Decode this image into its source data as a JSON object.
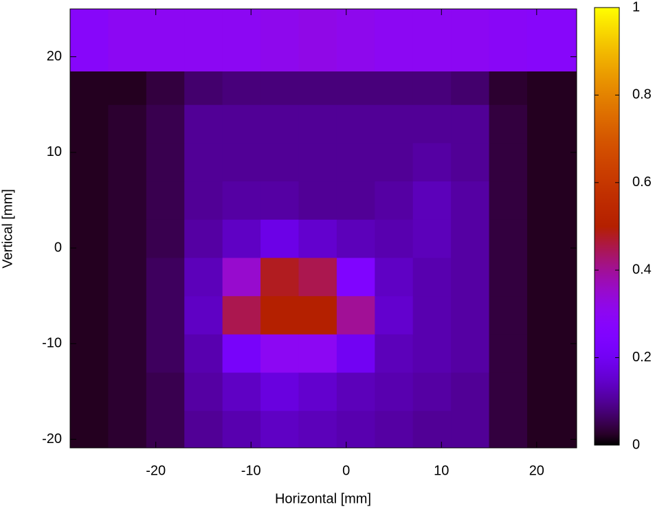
{
  "chart_data": {
    "type": "heatmap",
    "xlabel": "Horizontal [mm]",
    "ylabel": "Vertical [mm]",
    "xlim": [
      -29,
      24.2
    ],
    "ylim": [
      -20.9,
      25
    ],
    "xticks": [
      -20,
      -10,
      0,
      10,
      20
    ],
    "yticks": [
      -20,
      -10,
      0,
      10,
      20
    ],
    "zlim": [
      0,
      1
    ],
    "zticks": [
      0,
      0.2,
      0.4,
      0.6,
      0.8,
      1
    ],
    "x_edges": [
      -29,
      -25,
      -21,
      -17,
      -13,
      -9,
      -5,
      -1,
      3,
      7,
      11,
      15,
      19,
      24.2
    ],
    "y_edges": [
      -20.9,
      -17,
      -13,
      -9,
      -5,
      -1,
      3,
      7,
      11,
      15,
      18.5,
      25
    ],
    "z": [
      [
        0.02,
        0.03,
        0.05,
        0.1,
        0.12,
        0.14,
        0.13,
        0.12,
        0.11,
        0.1,
        0.1,
        0.04,
        0.02
      ],
      [
        0.02,
        0.03,
        0.05,
        0.11,
        0.14,
        0.17,
        0.15,
        0.13,
        0.12,
        0.11,
        0.1,
        0.04,
        0.02
      ],
      [
        0.02,
        0.03,
        0.06,
        0.12,
        0.22,
        0.3,
        0.3,
        0.2,
        0.13,
        0.12,
        0.11,
        0.04,
        0.02
      ],
      [
        0.02,
        0.03,
        0.06,
        0.14,
        0.45,
        0.5,
        0.5,
        0.4,
        0.15,
        0.12,
        0.11,
        0.04,
        0.02
      ],
      [
        0.02,
        0.03,
        0.06,
        0.13,
        0.35,
        0.48,
        0.45,
        0.25,
        0.14,
        0.12,
        0.11,
        0.04,
        0.02
      ],
      [
        0.02,
        0.03,
        0.05,
        0.11,
        0.14,
        0.18,
        0.15,
        0.13,
        0.12,
        0.13,
        0.11,
        0.04,
        0.02
      ],
      [
        0.02,
        0.03,
        0.05,
        0.1,
        0.11,
        0.11,
        0.1,
        0.1,
        0.11,
        0.13,
        0.11,
        0.04,
        0.02
      ],
      [
        0.02,
        0.03,
        0.05,
        0.1,
        0.1,
        0.1,
        0.1,
        0.1,
        0.1,
        0.11,
        0.1,
        0.04,
        0.02
      ],
      [
        0.02,
        0.03,
        0.05,
        0.1,
        0.1,
        0.1,
        0.1,
        0.1,
        0.1,
        0.1,
        0.1,
        0.04,
        0.02
      ],
      [
        0.02,
        0.02,
        0.04,
        0.07,
        0.08,
        0.08,
        0.08,
        0.08,
        0.08,
        0.08,
        0.07,
        0.03,
        0.02
      ],
      [
        0.28,
        0.3,
        0.3,
        0.3,
        0.3,
        0.31,
        0.32,
        0.31,
        0.3,
        0.3,
        0.3,
        0.29,
        0.28
      ]
    ]
  }
}
